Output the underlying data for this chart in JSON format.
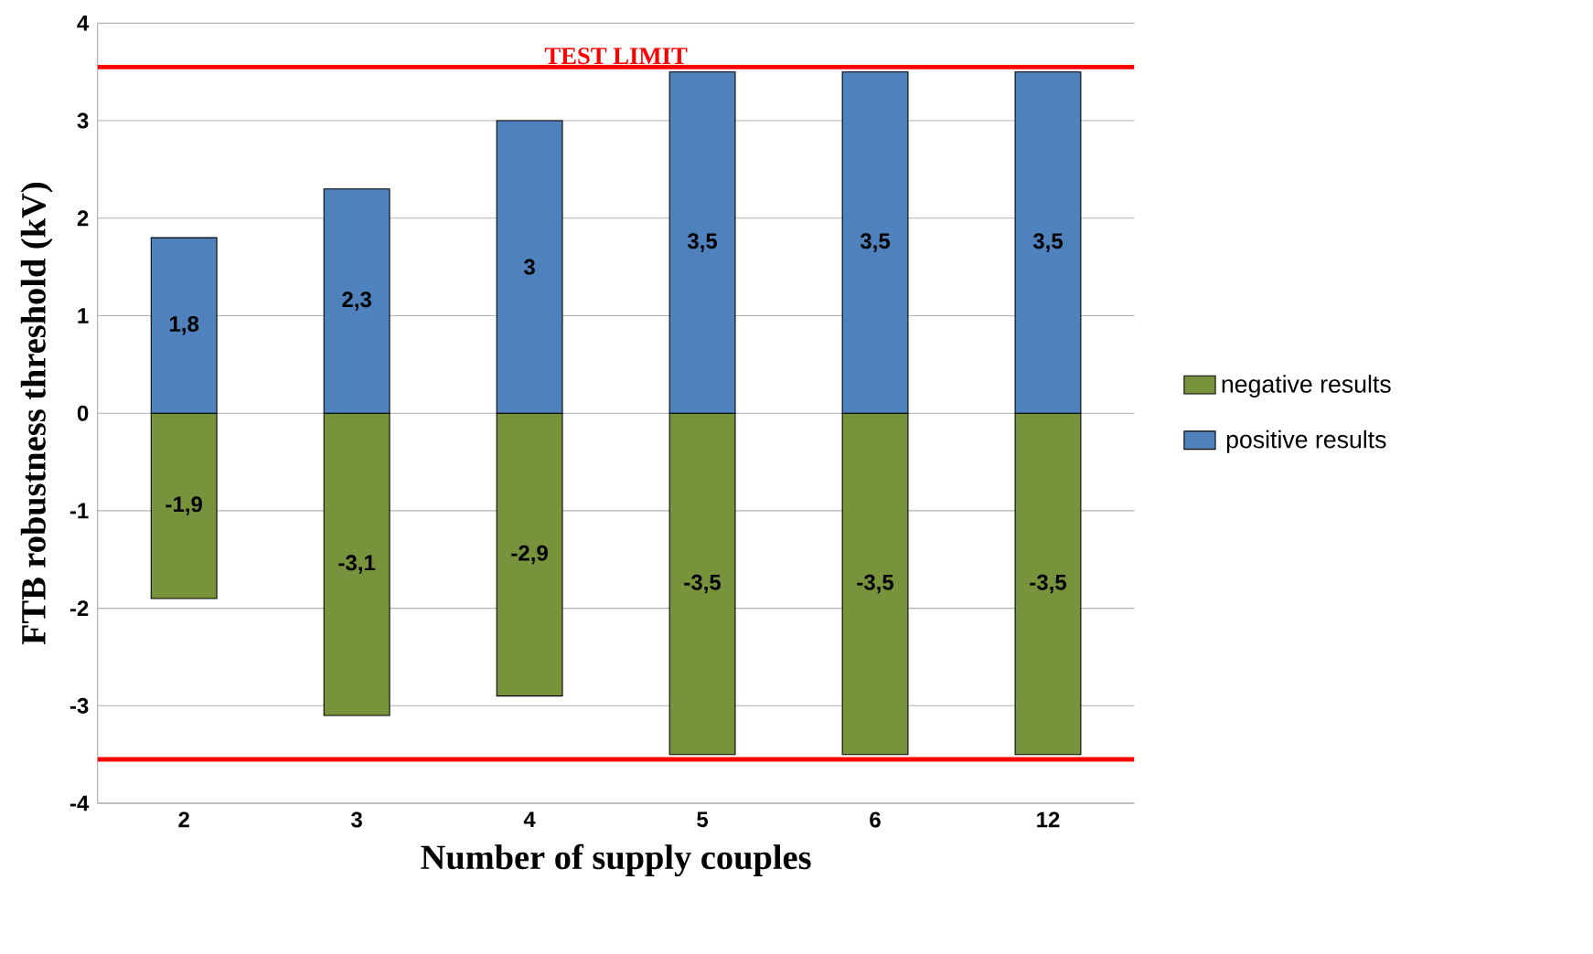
{
  "chart_data": {
    "type": "bar",
    "stacked": true,
    "xlabel": "Number of supply couples",
    "ylabel": "FTB robustness  threshold  (kV)",
    "categories": [
      "2",
      "3",
      "4",
      "5",
      "6",
      "12"
    ],
    "series": [
      {
        "name": "negative results",
        "color": "#77933c",
        "values": [
          -1.9,
          -3.1,
          -2.9,
          -3.5,
          -3.5,
          -3.5
        ],
        "value_labels": [
          "-1,9",
          "-3,1",
          "-2,9",
          "-3,5",
          "-3,5",
          "-3,5"
        ]
      },
      {
        "name": "positive results",
        "color": "#4f81bd",
        "values": [
          1.8,
          2.3,
          3,
          3.5,
          3.5,
          3.5
        ],
        "value_labels": [
          "1,8",
          "2,3",
          "3",
          "3,5",
          "3,5",
          "3,5"
        ]
      }
    ],
    "ylim": [
      -4,
      4
    ],
    "yticks": [
      -4,
      -3,
      -2,
      -1,
      0,
      1,
      2,
      3,
      4
    ],
    "grid": "y",
    "legend": "right",
    "ref_lines": [
      {
        "axis": "y",
        "value": 3.55,
        "label": "TEST LIMIT",
        "color": "#ff0000"
      },
      {
        "axis": "y",
        "value": -3.55,
        "color": "#ff0000"
      }
    ]
  }
}
